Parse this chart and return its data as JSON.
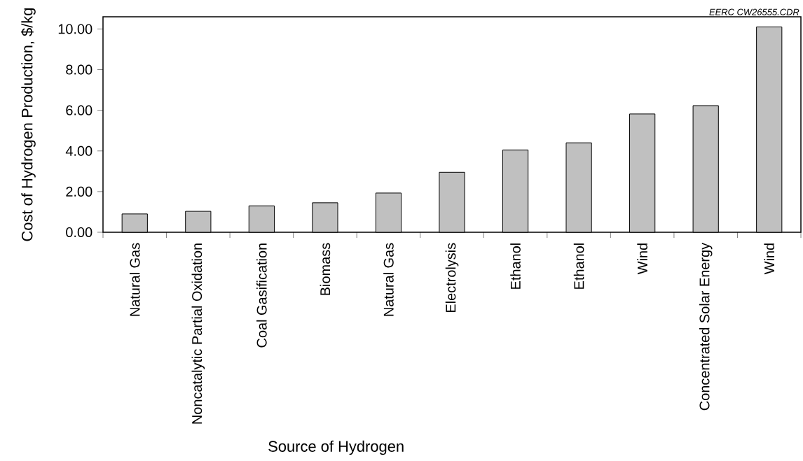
{
  "chart_data": {
    "type": "bar",
    "categories": [
      "Natural Gas",
      "Noncatalytic Partial Oxidation",
      "Coal Gasification",
      "Biomass",
      "Natural Gas",
      "Electrolysis",
      "Ethanol",
      "Ethanol",
      "Wind",
      "Concentrated Solar Energy",
      "Wind"
    ],
    "values": [
      0.9,
      1.03,
      1.3,
      1.45,
      1.93,
      2.95,
      4.05,
      4.4,
      5.82,
      6.23,
      10.1
    ],
    "color": "#c0c0c0",
    "xlabel": "Source of Hydrogen",
    "ylabel": "Cost of Hydrogen Production, $/kg",
    "ylim": [
      0,
      10.6
    ],
    "yticks": [
      {
        "value": 0,
        "label": "0.00"
      },
      {
        "value": 2,
        "label": "2.00"
      },
      {
        "value": 4,
        "label": "4.00"
      },
      {
        "value": 6,
        "label": "6.00"
      },
      {
        "value": 8,
        "label": "8.00"
      },
      {
        "value": 10,
        "label": "10.00"
      }
    ],
    "annotations": [
      "EERC CW26555.CDR"
    ]
  }
}
